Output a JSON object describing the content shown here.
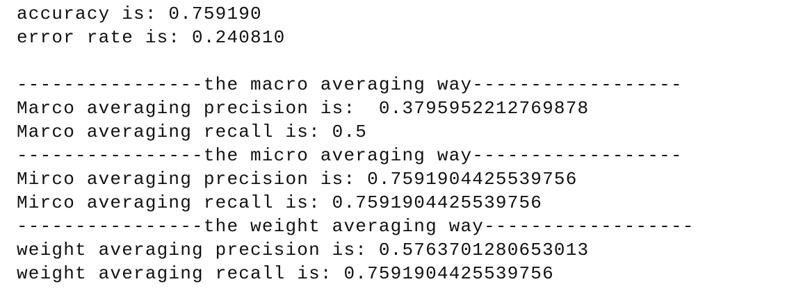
{
  "lines": [
    "accuracy is: 0.759190",
    "error rate is: 0.240810",
    "----------------the macro averaging way------------------",
    "Marco averaging precision is:  0.3795952212769878",
    "Marco averaging recall is: 0.5",
    "----------------the micro averaging way------------------",
    "Mirco averaging precision is: 0.7591904425539756",
    "Mirco averaging recall is: 0.7591904425539756",
    "----------------the weight averaging way------------------",
    "weight averaging precision is: 0.5763701280653013",
    "weight averaging recall is: 0.7591904425539756"
  ]
}
